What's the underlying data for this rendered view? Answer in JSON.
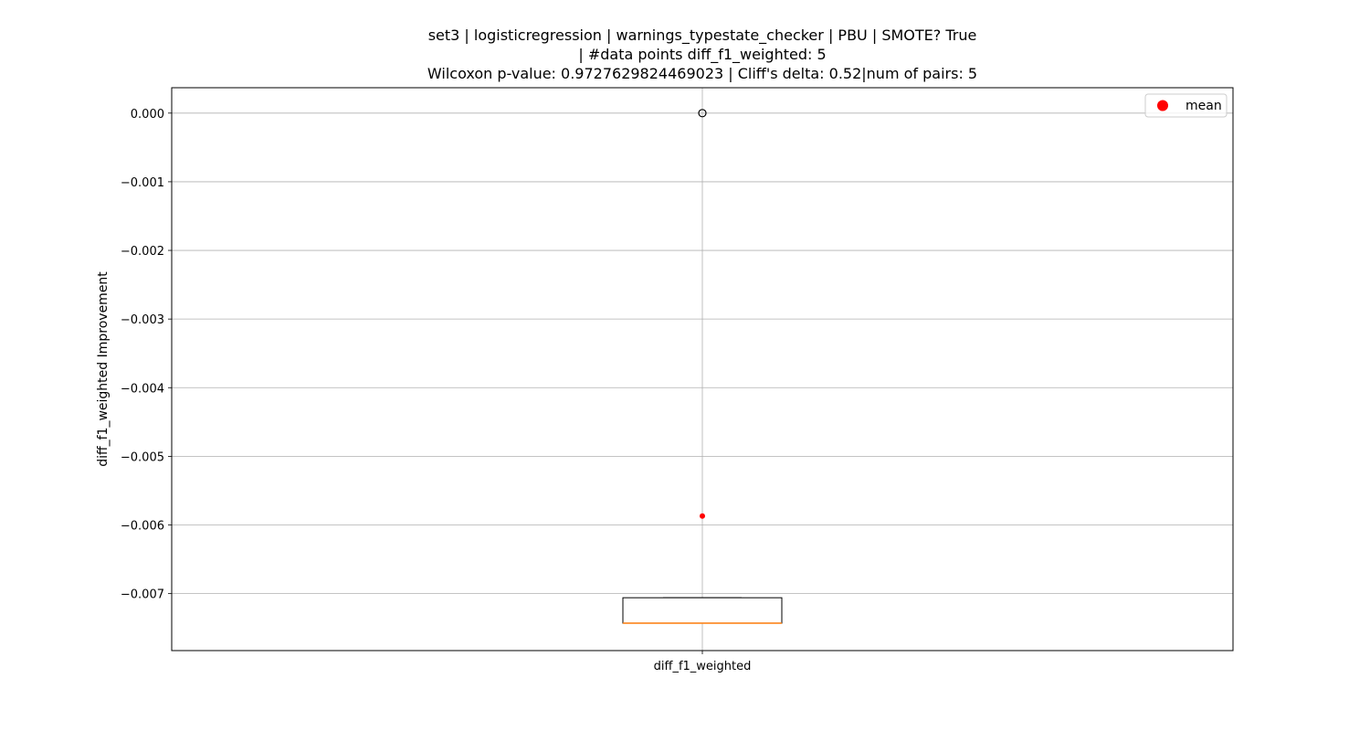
{
  "chart_data": {
    "type": "box",
    "title_lines": [
      "set3 | logisticregression | warnings_typestate_checker | PBU | SMOTE? True",
      "| #data points diff_f1_weighted: 5",
      "Wilcoxon p-value: 0.9727629824469023 | Cliff's delta: 0.52|num of pairs: 5"
    ],
    "xlabel": "",
    "ylabel": "diff_f1_weighted Improvement",
    "categories": [
      "diff_f1_weighted"
    ],
    "ylim": [
      -0.00783,
      0.00037
    ],
    "yticks": [
      0.0,
      -0.001,
      -0.002,
      -0.003,
      -0.004,
      -0.005,
      -0.006,
      -0.007
    ],
    "ytick_labels": [
      "0.000",
      "−0.001",
      "−0.002",
      "−0.003",
      "−0.004",
      "−0.005",
      "−0.006",
      "−0.007"
    ],
    "grid": true,
    "legend": {
      "placement": "upper right",
      "entries": [
        {
          "label": "mean",
          "color": "#ff0000",
          "marker": "circle"
        }
      ]
    },
    "boxes": [
      {
        "category": "diff_f1_weighted",
        "whisker_low": -0.00743,
        "q1": -0.00743,
        "median": -0.00743,
        "q3": -0.00706,
        "whisker_high": -0.00706,
        "mean": -0.00587,
        "outliers": [
          0.0
        ]
      }
    ],
    "colors": {
      "box": "#000000",
      "median": "#ff7f0e",
      "mean": "#ff0000",
      "grid": "#b0b0b0",
      "outlier_edge": "#000000"
    }
  }
}
